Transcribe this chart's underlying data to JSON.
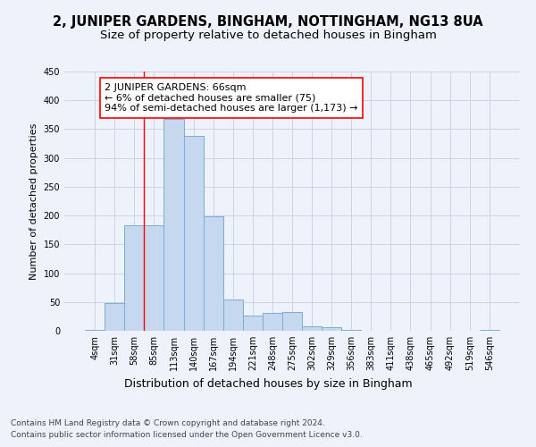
{
  "title": "2, JUNIPER GARDENS, BINGHAM, NOTTINGHAM, NG13 8UA",
  "subtitle": "Size of property relative to detached houses in Bingham",
  "xlabel": "Distribution of detached houses by size in Bingham",
  "ylabel": "Number of detached properties",
  "bar_color": "#c5d8f0",
  "bar_edge_color": "#7aadd4",
  "bin_labels": [
    "4sqm",
    "31sqm",
    "58sqm",
    "85sqm",
    "113sqm",
    "140sqm",
    "167sqm",
    "194sqm",
    "221sqm",
    "248sqm",
    "275sqm",
    "302sqm",
    "329sqm",
    "356sqm",
    "383sqm",
    "411sqm",
    "438sqm",
    "465sqm",
    "492sqm",
    "519sqm",
    "546sqm"
  ],
  "bar_values": [
    2,
    48,
    183,
    183,
    367,
    338,
    199,
    54,
    26,
    31,
    33,
    7,
    6,
    2,
    0,
    0,
    0,
    0,
    0,
    0,
    2
  ],
  "ylim": [
    0,
    450
  ],
  "yticks": [
    0,
    50,
    100,
    150,
    200,
    250,
    300,
    350,
    400,
    450
  ],
  "redline_bin": 2,
  "annotation_text": "2 JUNIPER GARDENS: 66sqm\n← 6% of detached houses are smaller (75)\n94% of semi-detached houses are larger (1,173) →",
  "annotation_box_color": "white",
  "annotation_box_edge_color": "red",
  "footer_line1": "Contains HM Land Registry data © Crown copyright and database right 2024.",
  "footer_line2": "Contains public sector information licensed under the Open Government Licence v3.0.",
  "background_color": "#eef2fa",
  "grid_color": "#c5cee0",
  "title_fontsize": 10.5,
  "subtitle_fontsize": 9.5,
  "xlabel_fontsize": 9,
  "ylabel_fontsize": 8,
  "tick_fontsize": 7,
  "annotation_fontsize": 8,
  "footer_fontsize": 6.5
}
